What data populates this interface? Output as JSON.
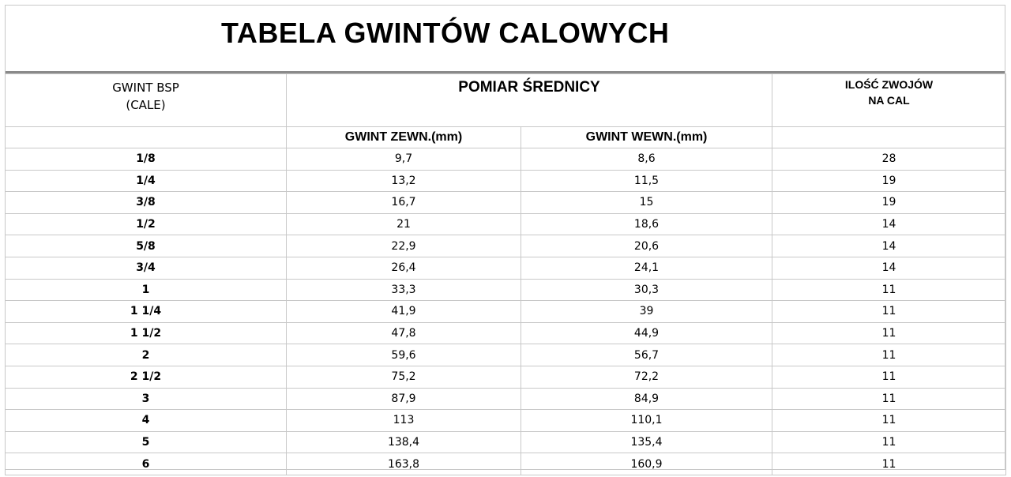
{
  "title": "TABELA GWINTÓW CALOWYCH",
  "headers": {
    "bsp_line1": "GWINT BSP",
    "bsp_line2": "(CALE)",
    "pomiar": "POMIAR ŚREDNICY",
    "ilosc_line1": "ILOŚĆ ZWOJÓW",
    "ilosc_line2": "NA CAL",
    "zewn": "GWINT ZEWN.(mm)",
    "wewn": "GWINT WEWN.(mm)"
  },
  "rows": [
    [
      "1/8",
      "9,7",
      "8,6",
      "28"
    ],
    [
      "1/4",
      "13,2",
      "11,5",
      "19"
    ],
    [
      "3/8",
      "16,7",
      "15",
      "19"
    ],
    [
      "1/2",
      "21",
      "18,6",
      "14"
    ],
    [
      "5/8",
      "22,9",
      "20,6",
      "14"
    ],
    [
      "3/4",
      "26,4",
      "24,1",
      "14"
    ],
    [
      "1",
      "33,3",
      "30,3",
      "11"
    ],
    [
      "1 1/4",
      "41,9",
      "39",
      "11"
    ],
    [
      "1 1/2",
      "47,8",
      "44,9",
      "11"
    ],
    [
      "2",
      "59,6",
      "56,7",
      "11"
    ],
    [
      "2 1/2",
      "75,2",
      "72,2",
      "11"
    ],
    [
      "3",
      "87,9",
      "84,9",
      "11"
    ],
    [
      "4",
      "113",
      "110,1",
      "11"
    ],
    [
      "5",
      "138,4",
      "135,4",
      "11"
    ],
    [
      "6",
      "163,8",
      "160,9",
      "11"
    ]
  ]
}
